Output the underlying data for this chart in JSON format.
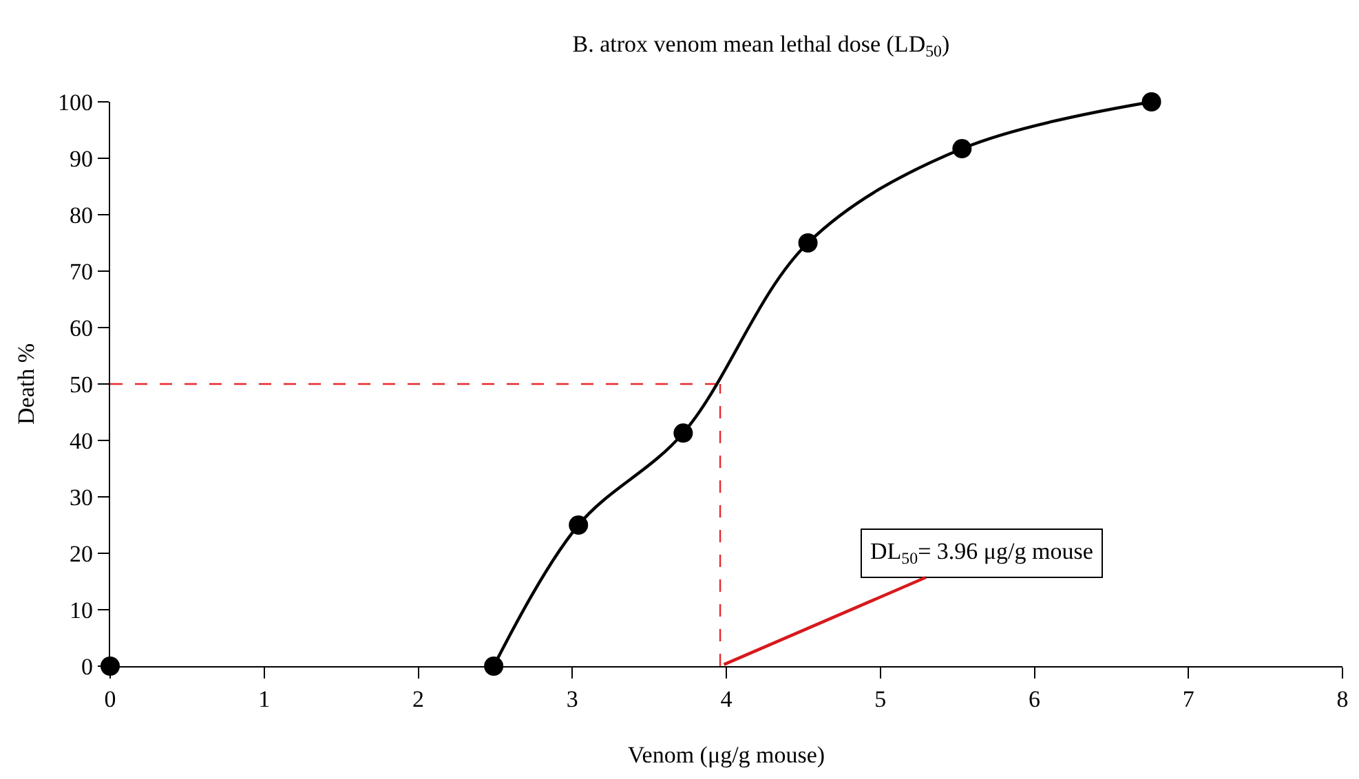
{
  "chart_data": {
    "type": "line",
    "title": "B. atrox venom mean lethal dose (LD$_{50}$)",
    "xlabel": "Venom (μg/g mouse)",
    "ylabel": "Death %",
    "series": [
      {
        "type": "scatter",
        "color": "#000000",
        "x": [
          0
        ],
        "values": [
          0
        ]
      },
      {
        "color": "#000000",
        "x": [
          2.49,
          3.04,
          3.72,
          4.53,
          5.53,
          6.76
        ],
        "values": [
          0,
          25,
          41.3,
          75,
          91.7,
          100
        ]
      }
    ],
    "xlim": [
      0,
      8
    ],
    "xticks": [
      0,
      1,
      2,
      3,
      4,
      5,
      6,
      7,
      8
    ],
    "ylim": [
      0,
      100
    ],
    "yticks": [
      0,
      10,
      20,
      30,
      40,
      50,
      60,
      70,
      80,
      90,
      100
    ],
    "grid": false,
    "marker": "circle",
    "line_style": "solid",
    "ref_lines": [
      {
        "axis": "y",
        "value": 50,
        "color": "#e8262a",
        "line_style": "dashed"
      },
      {
        "axis": "x",
        "value": 3.96,
        "color": "#e8262a",
        "line_style": "dashed"
      }
    ],
    "annotations": [
      {
        "text": "DL$_{50}$= 3.96 μg/g mouse",
        "x": 3.96,
        "y": 0
      }
    ]
  }
}
